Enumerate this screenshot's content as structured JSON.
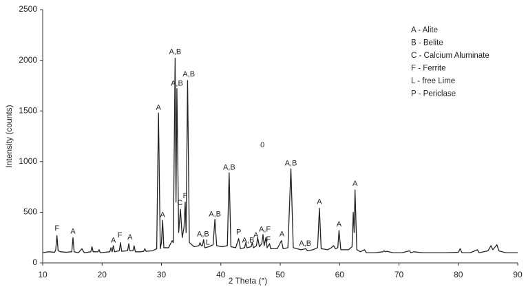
{
  "chart_data": {
    "type": "line",
    "xlabel": "2 Theta (°)",
    "ylabel": "Intensity (counts)",
    "xlim": [
      10,
      90
    ],
    "ylim": [
      0,
      2500
    ],
    "xticks": [
      10,
      20,
      30,
      40,
      50,
      60,
      70,
      80,
      90
    ],
    "yticks": [
      0,
      500,
      1000,
      1500,
      2000,
      2500
    ],
    "grid": false,
    "color": "#222222",
    "x": [
      10,
      11,
      12,
      12.2,
      12.4,
      12.6,
      13,
      14,
      14.9,
      15.1,
      15.3,
      16,
      16.6,
      17,
      18.1,
      18.3,
      18.5,
      19.3,
      19.5,
      19.7,
      20.5,
      21.3,
      21.5,
      21.7,
      21.9,
      22.1,
      22.9,
      23.1,
      23.3,
      24.3,
      24.5,
      24.7,
      25.2,
      25.4,
      25.6,
      26.5,
      27,
      27.2,
      27.4,
      28.5,
      29.2,
      29.5,
      29.8,
      30,
      30.2,
      30.4,
      31.2,
      31.8,
      32,
      32.3,
      32.45,
      32.6,
      32.9,
      33.2,
      33.5,
      33.8,
      34,
      34.15,
      34.4,
      34.7,
      35.5,
      36.3,
      36.5,
      36.7,
      36.9,
      37.1,
      37.3,
      38,
      38.7,
      39,
      39.3,
      40.2,
      41.1,
      41.4,
      41.7,
      42.5,
      43,
      43.3,
      44,
      44.2,
      44.4,
      45.1,
      45.3,
      45.5,
      46,
      46.2,
      46.5,
      46.9,
      47.1,
      47.3,
      47.6,
      47.8,
      48.2,
      48.4,
      49.5,
      50.2,
      50.5,
      51.3,
      51.8,
      52.2,
      53.5,
      54.3,
      54.6,
      55.5,
      56.3,
      56.6,
      56.9,
      58,
      58.6,
      59,
      59.3,
      59.7,
      59.9,
      60.2,
      61.5,
      62.1,
      62.3,
      62.45,
      62.6,
      62.9,
      63.5,
      64.2,
      64.5,
      66,
      67.3,
      67.5,
      67.7,
      68,
      69,
      70.5,
      71.8,
      72,
      72.5,
      74,
      76,
      78,
      80,
      80.3,
      80.6,
      82,
      83.2,
      83.5,
      85,
      85.5,
      85.8,
      86.5,
      86.8,
      88,
      90
    ],
    "values": [
      100,
      110,
      105,
      130,
      270,
      120,
      110,
      105,
      110,
      250,
      110,
      100,
      140,
      100,
      110,
      160,
      110,
      110,
      130,
      100,
      105,
      110,
      150,
      110,
      170,
      110,
      120,
      200,
      115,
      120,
      190,
      120,
      120,
      170,
      110,
      110,
      115,
      140,
      115,
      120,
      140,
      1480,
      140,
      200,
      420,
      150,
      150,
      220,
      200,
      2020,
      600,
      1720,
      300,
      530,
      250,
      350,
      600,
      300,
      1800,
      200,
      160,
      170,
      200,
      170,
      170,
      230,
      150,
      160,
      180,
      430,
      170,
      160,
      170,
      890,
      160,
      150,
      240,
      140,
      150,
      200,
      150,
      160,
      200,
      150,
      170,
      250,
      160,
      190,
      280,
      170,
      250,
      150,
      190,
      140,
      140,
      220,
      140,
      150,
      930,
      150,
      130,
      140,
      120,
      130,
      150,
      540,
      140,
      130,
      150,
      170,
      140,
      150,
      320,
      130,
      130,
      160,
      500,
      300,
      720,
      130,
      110,
      130,
      100,
      100,
      110,
      120,
      110,
      115,
      100,
      100,
      120,
      100,
      110,
      100,
      100,
      100,
      105,
      140,
      100,
      100,
      130,
      100,
      120,
      170,
      130,
      180,
      120,
      100,
      100
    ],
    "annotations": [
      {
        "text": "F",
        "x": 12.4,
        "y": 340
      },
      {
        "text": "A",
        "x": 15.1,
        "y": 310
      },
      {
        "text": "A",
        "x": 21.9,
        "y": 220
      },
      {
        "text": "F",
        "x": 23.0,
        "y": 270
      },
      {
        "text": "A",
        "x": 24.7,
        "y": 250
      },
      {
        "text": "A",
        "x": 29.5,
        "y": 1530
      },
      {
        "text": "A",
        "x": 30.2,
        "y": 470
      },
      {
        "text": "A,B",
        "x": 32.3,
        "y": 2080
      },
      {
        "text": "A,B",
        "x": 32.6,
        "y": 1770
      },
      {
        "text": "C",
        "x": 33.1,
        "y": 590
      },
      {
        "text": "F",
        "x": 34.0,
        "y": 660
      },
      {
        "text": "A,B",
        "x": 34.6,
        "y": 1860
      },
      {
        "text": "A,B",
        "x": 37.0,
        "y": 280
      },
      {
        "text": "L",
        "x": 37.8,
        "y": 200
      },
      {
        "text": "A,B",
        "x": 39.0,
        "y": 480
      },
      {
        "text": "A,B",
        "x": 41.4,
        "y": 940
      },
      {
        "text": "P",
        "x": 43.0,
        "y": 300
      },
      {
        "text": "A,B",
        "x": 44.6,
        "y": 220
      },
      {
        "text": "A",
        "x": 45.9,
        "y": 270
      },
      {
        "text": "A,F",
        "x": 47.4,
        "y": 330
      },
      {
        "text": "F",
        "x": 48.0,
        "y": 230
      },
      {
        "text": "A",
        "x": 50.3,
        "y": 280
      },
      {
        "text": "A,B",
        "x": 51.8,
        "y": 980
      },
      {
        "text": "A,B",
        "x": 54.2,
        "y": 190
      },
      {
        "text": "A",
        "x": 56.6,
        "y": 600
      },
      {
        "text": "A",
        "x": 59.9,
        "y": 380
      },
      {
        "text": "A",
        "x": 62.6,
        "y": 780
      },
      {
        "text": "0",
        "x": 47.0,
        "y": 1160
      }
    ],
    "legend_text": [
      "A - Alite",
      "B - Belite",
      "C - Calcium Aluminate",
      "F - Ferrite",
      "L - free Lime",
      "P - Periclase"
    ]
  }
}
